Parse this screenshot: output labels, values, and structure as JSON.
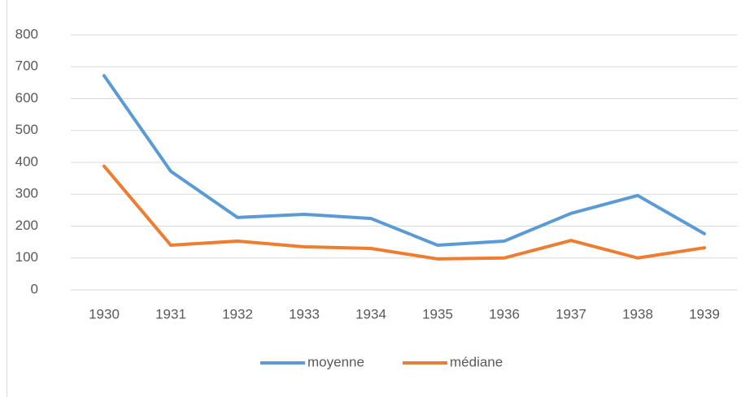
{
  "chart_data": {
    "type": "line",
    "categories": [
      "1930",
      "1931",
      "1932",
      "1933",
      "1934",
      "1935",
      "1936",
      "1937",
      "1938",
      "1939"
    ],
    "series": [
      {
        "name": "moyenne",
        "color": "#5b9bd5",
        "values": [
          672,
          372,
          227,
          237,
          224,
          140,
          153,
          240,
          296,
          176
        ]
      },
      {
        "name": "médiane",
        "color": "#ed7d31",
        "values": [
          388,
          140,
          153,
          135,
          130,
          97,
          100,
          155,
          100,
          132
        ]
      }
    ],
    "ylim": [
      0,
      800
    ],
    "yticks": [
      0,
      100,
      200,
      300,
      400,
      500,
      600,
      700,
      800
    ],
    "grid": true,
    "legend": "bottom"
  }
}
